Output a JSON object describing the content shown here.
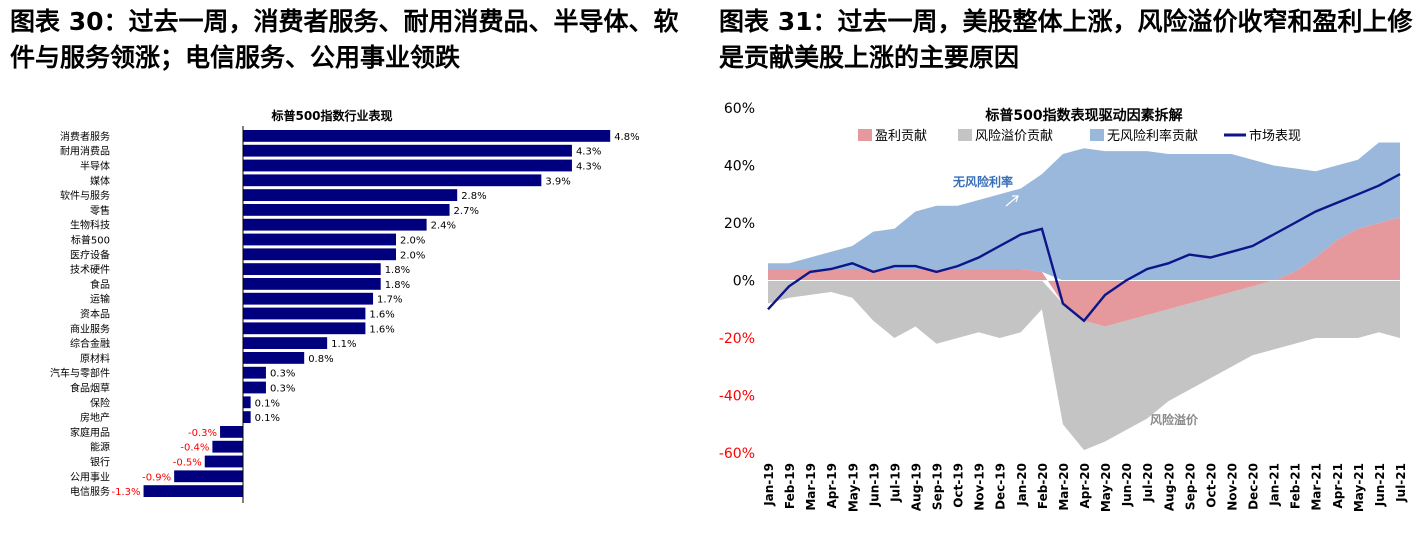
{
  "left_panel": {
    "title": "图表 30：过去一周，消费者服务、耐用消费品、半导体、软件与服务领涨；电信服务、公用事业领跌"
  },
  "right_panel": {
    "title": "图表 31：过去一周，美股整体上涨，风险溢价收窄和盈利上修是贡献美股上涨的主要原因"
  },
  "chart_data": [
    {
      "type": "bar",
      "orientation": "horizontal",
      "title": "标普500指数行业表现",
      "categories": [
        "消费者服务",
        "耐用消费品",
        "半导体",
        "媒体",
        "软件与服务",
        "零售",
        "生物科技",
        "标普500",
        "医疗设备",
        "技术硬件",
        "食品",
        "运输",
        "资本品",
        "商业服务",
        "综合金融",
        "原材料",
        "汽车与零部件",
        "食品烟草",
        "保险",
        "房地产",
        "家庭用品",
        "能源",
        "银行",
        "公用事业",
        "电信服务"
      ],
      "values": [
        4.8,
        4.3,
        4.3,
        3.9,
        2.8,
        2.7,
        2.4,
        2.0,
        2.0,
        1.8,
        1.8,
        1.7,
        1.6,
        1.6,
        1.1,
        0.8,
        0.3,
        0.3,
        0.1,
        0.1,
        -0.3,
        -0.4,
        -0.5,
        -0.9,
        -1.3
      ],
      "labels": [
        "4.8%",
        "4.3%",
        "4.3%",
        "3.9%",
        "2.8%",
        "2.7%",
        "2.4%",
        "2.0%",
        "2.0%",
        "1.8%",
        "1.8%",
        "1.7%",
        "1.6%",
        "1.6%",
        "1.1%",
        "0.8%",
        "0.3%",
        "0.3%",
        "0.1%",
        "0.1%",
        "-0.3%",
        "-0.4%",
        "-0.5%",
        "-0.9%",
        "-1.3%"
      ],
      "unit": "%",
      "colors": {
        "bar": "#00007f",
        "positive_label": "#000000",
        "negative_label": "#ff0000"
      }
    },
    {
      "type": "area",
      "title": "标普500指数表现驱动因素拆解",
      "ylim": [
        -60,
        60
      ],
      "yticks": [
        "60%",
        "40%",
        "20%",
        "0%",
        "-20%",
        "-40%",
        "-60%"
      ],
      "ytick_values": [
        60,
        40,
        20,
        0,
        -20,
        -40,
        -60
      ],
      "xticks": [
        "Jan-19",
        "Feb-19",
        "Mar-19",
        "Apr-19",
        "May-19",
        "Jun-19",
        "Jul-19",
        "Aug-19",
        "Sep-19",
        "Oct-19",
        "Nov-19",
        "Dec-19",
        "Jan-20",
        "Feb-20",
        "Mar-20",
        "Apr-20",
        "May-20",
        "Jun-20",
        "Jul-20",
        "Aug-20",
        "Sep-20",
        "Oct-20",
        "Nov-20",
        "Dec-20",
        "Jan-21",
        "Feb-21",
        "Mar-21",
        "Apr-21",
        "May-21",
        "Jun-21",
        "Jul-21"
      ],
      "legend": [
        "盈利贡献",
        "风险溢价贡献",
        "无风险利率贡献",
        "市场表现"
      ],
      "legend_position": "top",
      "annotations": [
        "无风险利率",
        "风险溢价"
      ],
      "colors": {
        "earnings": "#e6999c",
        "risk_premium": "#c4c4c4",
        "risk_free": "#9ab7dc",
        "market": "#0c1689",
        "annotation_blue": "#3a6fb8",
        "annotation_grey": "#8a8a8a"
      },
      "series": [
        {
          "name": "盈利贡献",
          "values": [
            4,
            4,
            4,
            4,
            4,
            4,
            4,
            4,
            4,
            4,
            4,
            4,
            4,
            3,
            -8,
            -14,
            -16,
            -14,
            -12,
            -10,
            -8,
            -6,
            -4,
            -2,
            0,
            3,
            8,
            14,
            18,
            20,
            22
          ]
        },
        {
          "name": "风险溢价贡献",
          "values": [
            -8,
            -6,
            -5,
            -4,
            -6,
            -14,
            -20,
            -16,
            -22,
            -20,
            -18,
            -20,
            -18,
            -10,
            -42,
            -45,
            -40,
            -38,
            -36,
            -32,
            -30,
            -28,
            -26,
            -24,
            -24,
            -22,
            -20,
            -20,
            -20,
            -18,
            -20
          ]
        },
        {
          "name": "无风险利率贡献",
          "values": [
            2,
            2,
            4,
            6,
            8,
            13,
            14,
            20,
            22,
            22,
            24,
            26,
            28,
            34,
            44,
            46,
            45,
            45,
            45,
            44,
            44,
            44,
            44,
            42,
            40,
            36,
            30,
            26,
            24,
            28,
            26
          ]
        },
        {
          "name": "市场表现",
          "values": [
            -10,
            -2,
            3,
            4,
            6,
            3,
            5,
            5,
            3,
            5,
            8,
            12,
            16,
            18,
            -8,
            -14,
            -5,
            0,
            4,
            6,
            9,
            8,
            10,
            12,
            16,
            20,
            24,
            27,
            30,
            33,
            37
          ]
        }
      ]
    }
  ]
}
